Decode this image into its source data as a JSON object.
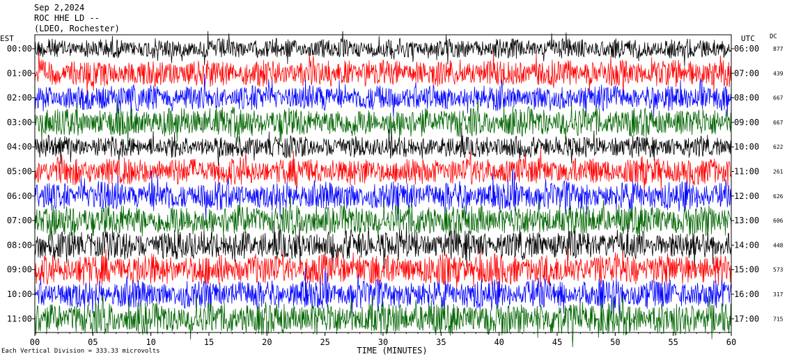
{
  "header": {
    "date": "Sep 2,2024",
    "station": "ROC HHE LD --",
    "location": "(LDEO, Rochester)"
  },
  "left_axis_label": "EST",
  "right_axis_label": "UTC",
  "dc_label": "DC",
  "x_axis_title": "TIME (MINUTES)",
  "footer_note": "Each Vertical Division = 333.33 microvolts",
  "colors": {
    "trace_cycle": [
      "#000000",
      "#ff0000",
      "#0000ff",
      "#006400"
    ],
    "axis": "#000000",
    "background": "#ffffff"
  },
  "chart_data": {
    "type": "line",
    "xlabel": "TIME (MINUTES)",
    "xlim": [
      0,
      60
    ],
    "x_ticks": [
      "00",
      "05",
      "10",
      "15",
      "20",
      "25",
      "30",
      "35",
      "40",
      "45",
      "50",
      "55",
      "60"
    ],
    "rows": [
      {
        "est": "00:00",
        "utc": "06:00",
        "dc": "877",
        "color": "#000000",
        "amplitude": 0.55
      },
      {
        "est": "01:00",
        "utc": "07:00",
        "dc": "439",
        "color": "#ff0000",
        "amplitude": 0.75
      },
      {
        "est": "02:00",
        "utc": "08:00",
        "dc": "667",
        "color": "#0000ff",
        "amplitude": 0.7
      },
      {
        "est": "03:00",
        "utc": "09:00",
        "dc": "667",
        "color": "#006400",
        "amplitude": 0.8
      },
      {
        "est": "04:00",
        "utc": "10:00",
        "dc": "622",
        "color": "#000000",
        "amplitude": 0.6
      },
      {
        "est": "05:00",
        "utc": "11:00",
        "dc": "261",
        "color": "#ff0000",
        "amplitude": 0.75
      },
      {
        "est": "06:00",
        "utc": "12:00",
        "dc": "626",
        "color": "#0000ff",
        "amplitude": 0.8
      },
      {
        "est": "07:00",
        "utc": "13:00",
        "dc": "606",
        "color": "#006400",
        "amplitude": 0.85
      },
      {
        "est": "08:00",
        "utc": "14:00",
        "dc": "448",
        "color": "#000000",
        "amplitude": 0.8
      },
      {
        "est": "09:00",
        "utc": "15:00",
        "dc": "573",
        "color": "#ff0000",
        "amplitude": 0.85
      },
      {
        "est": "10:00",
        "utc": "16:00",
        "dc": "317",
        "color": "#0000ff",
        "amplitude": 0.8
      },
      {
        "est": "11:00",
        "utc": "17:00",
        "dc": "715",
        "color": "#006400",
        "amplitude": 0.9
      }
    ]
  }
}
